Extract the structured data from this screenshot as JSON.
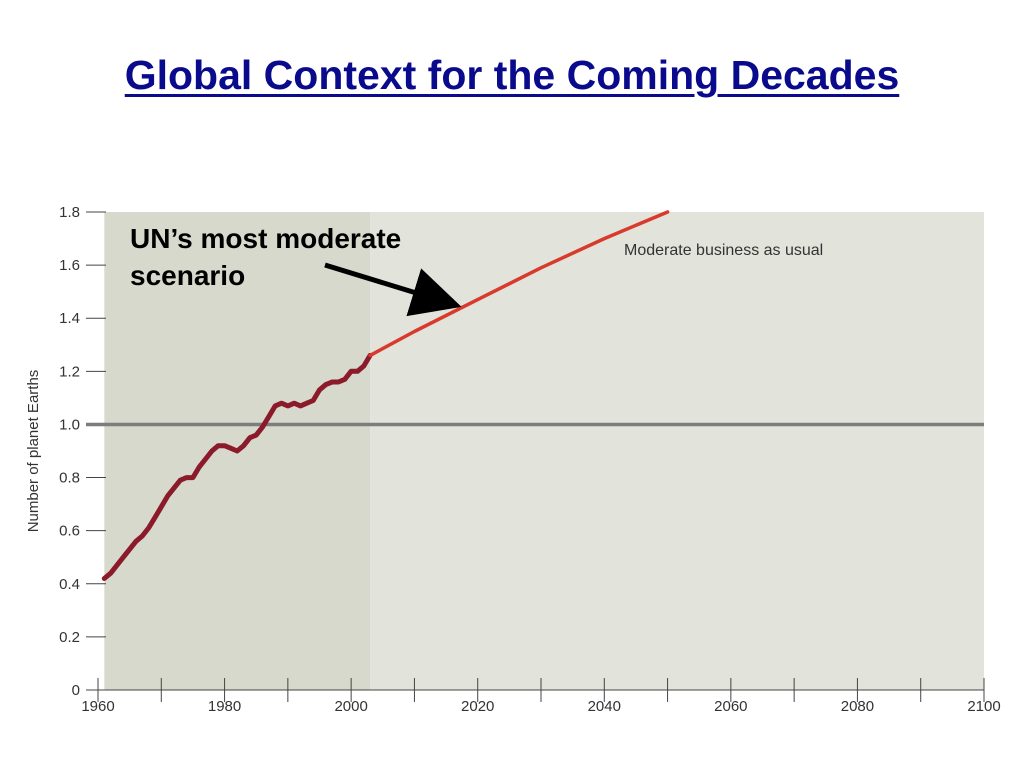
{
  "title": "Global Context for the Coming Decades",
  "chart_data": {
    "type": "line",
    "ylabel": "Number of planet Earths",
    "xlim": [
      1960,
      2100
    ],
    "ylim": [
      0,
      1.8
    ],
    "x_ticks": [
      1960,
      1980,
      2000,
      2020,
      2040,
      2060,
      2080,
      2100
    ],
    "y_ticks": [
      "0",
      "0.2",
      "0.4",
      "0.6",
      "0.8",
      "1.0",
      "1.2",
      "1.4",
      "1.6",
      "1.8"
    ],
    "y_tick_values": [
      0,
      0.2,
      0.4,
      0.6,
      0.8,
      1.0,
      1.2,
      1.4,
      1.6,
      1.8
    ],
    "reference_line": 1.0,
    "shaded_historical_range": [
      1961,
      2003
    ],
    "series": [
      {
        "role": "historical",
        "color": "#8b1a2b",
        "x": [
          1961,
          1962,
          1963,
          1964,
          1965,
          1966,
          1967,
          1968,
          1969,
          1970,
          1971,
          1972,
          1973,
          1974,
          1975,
          1976,
          1977,
          1978,
          1979,
          1980,
          1981,
          1982,
          1983,
          1984,
          1985,
          1986,
          1987,
          1988,
          1989,
          1990,
          1991,
          1992,
          1993,
          1994,
          1995,
          1996,
          1997,
          1998,
          1999,
          2000,
          2001,
          2002,
          2003
        ],
        "values": [
          0.42,
          0.44,
          0.47,
          0.5,
          0.53,
          0.56,
          0.58,
          0.61,
          0.65,
          0.69,
          0.73,
          0.76,
          0.79,
          0.8,
          0.8,
          0.84,
          0.87,
          0.9,
          0.92,
          0.92,
          0.91,
          0.9,
          0.92,
          0.95,
          0.96,
          0.99,
          1.03,
          1.07,
          1.08,
          1.07,
          1.08,
          1.07,
          1.08,
          1.09,
          1.13,
          1.15,
          1.16,
          1.16,
          1.17,
          1.2,
          1.2,
          1.22,
          1.26
        ]
      },
      {
        "name": "Moderate business as usual",
        "role": "projection",
        "color": "#d93a2e",
        "x": [
          2003,
          2010,
          2020,
          2030,
          2040,
          2050
        ],
        "values": [
          1.26,
          1.35,
          1.47,
          1.59,
          1.7,
          1.8
        ]
      }
    ],
    "scenario_label": "Moderate business as usual",
    "annotation": {
      "line1": "UN’s most moderate",
      "line2": "scenario"
    },
    "colors": {
      "historical_shade": "#d6d9cb",
      "projection_shade": "#e2e3da",
      "reference_line": "#7d7d7d",
      "axis": "#444444"
    }
  }
}
